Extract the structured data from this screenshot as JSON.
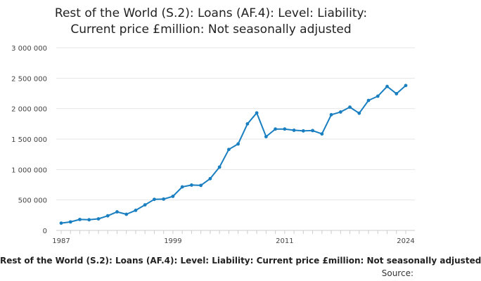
{
  "chart_data": {
    "type": "line",
    "title_lines": [
      "Rest of the World (S.2): Loans (AF.4): Level: Liability:",
      "Current price £million: Not seasonally adjusted"
    ],
    "caption": "Rest of the World (S.2): Loans (AF.4): Level: Liability: Current price £million: Not seasonally adjusted",
    "source_label": "Source:",
    "xlabel": "",
    "ylabel": "",
    "x": [
      1987,
      1988,
      1989,
      1990,
      1991,
      1992,
      1993,
      1994,
      1995,
      1996,
      1997,
      1998,
      1999,
      2000,
      2001,
      2002,
      2003,
      2004,
      2005,
      2006,
      2007,
      2008,
      2009,
      2010,
      2011,
      2012,
      2013,
      2014,
      2015,
      2016,
      2017,
      2018,
      2019,
      2020,
      2021,
      2022,
      2023,
      2024
    ],
    "series": [
      {
        "values": [
          120000,
          140000,
          180000,
          175000,
          190000,
          240000,
          305000,
          265000,
          330000,
          420000,
          510000,
          515000,
          560000,
          715000,
          745000,
          740000,
          850000,
          1040000,
          1330000,
          1420000,
          1750000,
          1930000,
          1540000,
          1665000,
          1665000,
          1645000,
          1635000,
          1640000,
          1585000,
          1900000,
          1945000,
          2025000,
          1925000,
          2135000,
          2205000,
          2365000,
          2245000,
          2380000
        ]
      }
    ],
    "x_ticks": [
      1987,
      1999,
      2011,
      2024
    ],
    "y_ticks": [
      0,
      500000,
      1000000,
      1500000,
      2000000,
      2500000,
      3000000
    ],
    "y_tick_labels": [
      "0",
      "500 000",
      "1 000 000",
      "1 500 000",
      "2 000 000",
      "2 500 000",
      "3 000 000"
    ],
    "xlim": [
      1987,
      2024
    ],
    "ylim": [
      0,
      3000000
    ],
    "grid": true,
    "line_color": "#1a7fc1",
    "grid_color": "#e6e6e6"
  }
}
